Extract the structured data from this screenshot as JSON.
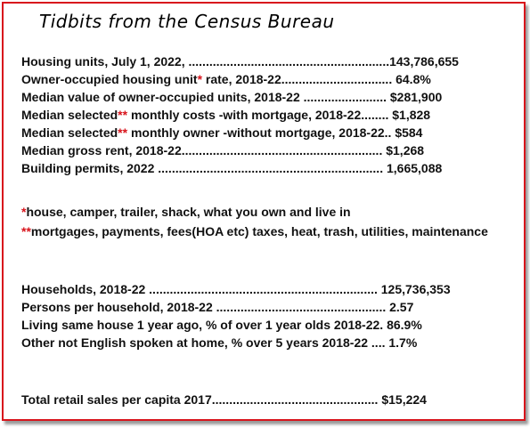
{
  "title": "Tidbits from the Census Bureau",
  "block1": [
    {
      "pre": "Housing units, July 1, 2022, ..........................................................143,786,655"
    },
    {
      "pre": "Owner-occupied housing unit",
      "star": "*",
      "post": " rate, 2018-22................................ 64.8%"
    },
    {
      "pre": "Median value of owner-occupied units, 2018-22 ........................ $281,900"
    },
    {
      "pre": "Median selected",
      "star": "**",
      "post": " monthly costs -with mortgage, 2018-22........ $1,828"
    },
    {
      "pre": "Median selected",
      "star": "**",
      "post": " monthly owner -without mortgage, 2018-22.. $584"
    },
    {
      "pre": "Median gross rent, 2018-22.......................................................... $1,268"
    },
    {
      "pre": "Building permits, 2022 ................................................................. 1,665,088"
    }
  ],
  "notes": [
    {
      "star": "*",
      "text": "house, camper, trailer, shack, what you own and live in"
    },
    {
      "star": "**",
      "text": "mortgages, payments, fees(HOA etc) taxes, heat, trash, utilities, maintenance"
    }
  ],
  "block2": [
    {
      "pre": "Households, 2018-22 .................................................................. 125,736,353"
    },
    {
      "pre": "Persons per household, 2018-22 ................................................. 2.57"
    },
    {
      "pre": "Living same house 1 year ago, % of over 1 year olds 2018-22. 86.9%"
    },
    {
      "pre": "Other not English spoken at home, % over 5 years 2018-22 .... 1.7%"
    }
  ],
  "block3": [
    {
      "pre": "Total retail sales per capita 2017................................................ $15,224"
    }
  ],
  "colors": {
    "accent": "#d8141c",
    "text": "#111111"
  }
}
